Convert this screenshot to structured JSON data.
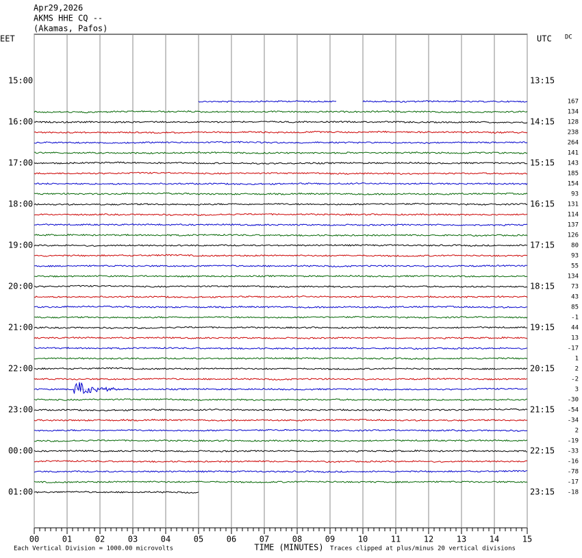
{
  "chart_data": {
    "type": "helicorder",
    "title_lines": [
      "Apr29,2026",
      "AKMS HHE CQ --",
      "(Akamas, Pafos)"
    ],
    "left_axis_label": "EET",
    "right_axis_label": "UTC",
    "dc_label": "DC",
    "x_label": "TIME (MINUTES)",
    "scale_note": "Each Vertical Division = 1000.00 microvolts",
    "clip_note": "Traces clipped at plus/minus 20 vertical divisions",
    "xlim": [
      0,
      15
    ],
    "xticks": [
      {
        "value": 0,
        "label": "00"
      },
      {
        "value": 1,
        "label": "01"
      },
      {
        "value": 2,
        "label": "02"
      },
      {
        "value": 3,
        "label": "03"
      },
      {
        "value": 4,
        "label": "04"
      },
      {
        "value": 5,
        "label": "05"
      },
      {
        "value": 6,
        "label": "06"
      },
      {
        "value": 7,
        "label": "07"
      },
      {
        "value": 8,
        "label": "08"
      },
      {
        "value": 9,
        "label": "09"
      },
      10,
      11,
      12,
      13,
      14,
      15
    ],
    "grid": true,
    "left_time_labels": [
      "15:00",
      "16:00",
      "17:00",
      "18:00",
      "19:00",
      "20:00",
      "21:00",
      "22:00",
      "23:00",
      "00:00",
      "01:00"
    ],
    "right_time_labels": [
      "13:15",
      "14:15",
      "15:15",
      "16:15",
      "17:15",
      "18:15",
      "19:15",
      "20:15",
      "21:15",
      "22:15",
      "23:15"
    ],
    "traces": [
      {
        "dc": 167,
        "color": "#0000cc",
        "segments": [
          [
            5,
            9.2
          ],
          [
            10,
            15
          ]
        ]
      },
      {
        "dc": 134,
        "color": "#006400",
        "segments": [
          [
            0,
            15
          ]
        ]
      },
      {
        "dc": 128,
        "color": "#000000",
        "segments": [
          [
            0,
            15
          ]
        ]
      },
      {
        "dc": 238,
        "color": "#cc0000",
        "segments": [
          [
            0,
            15
          ]
        ]
      },
      {
        "dc": 264,
        "color": "#0000cc",
        "segments": [
          [
            0,
            15
          ]
        ]
      },
      {
        "dc": 141,
        "color": "#006400",
        "segments": [
          [
            0,
            15
          ]
        ]
      },
      {
        "dc": 143,
        "color": "#000000",
        "segments": [
          [
            0,
            15
          ]
        ]
      },
      {
        "dc": 185,
        "color": "#cc0000",
        "segments": [
          [
            0,
            15
          ]
        ]
      },
      {
        "dc": 154,
        "color": "#0000cc",
        "segments": [
          [
            0,
            15
          ]
        ]
      },
      {
        "dc": 93,
        "color": "#006400",
        "segments": [
          [
            0,
            15
          ]
        ]
      },
      {
        "dc": 131,
        "color": "#000000",
        "segments": [
          [
            0,
            15
          ]
        ]
      },
      {
        "dc": 114,
        "color": "#cc0000",
        "segments": [
          [
            0,
            15
          ]
        ]
      },
      {
        "dc": 137,
        "color": "#0000cc",
        "segments": [
          [
            0,
            15
          ]
        ]
      },
      {
        "dc": 126,
        "color": "#006400",
        "segments": [
          [
            0,
            15
          ]
        ]
      },
      {
        "dc": 80,
        "color": "#000000",
        "segments": [
          [
            0,
            15
          ]
        ]
      },
      {
        "dc": 93,
        "color": "#cc0000",
        "segments": [
          [
            0,
            15
          ]
        ]
      },
      {
        "dc": 55,
        "color": "#0000cc",
        "segments": [
          [
            0,
            15
          ]
        ]
      },
      {
        "dc": 134,
        "color": "#006400",
        "segments": [
          [
            0,
            15
          ]
        ]
      },
      {
        "dc": 73,
        "color": "#000000",
        "segments": [
          [
            0,
            15
          ]
        ]
      },
      {
        "dc": 43,
        "color": "#cc0000",
        "segments": [
          [
            0,
            15
          ]
        ]
      },
      {
        "dc": 85,
        "color": "#0000cc",
        "segments": [
          [
            0,
            15
          ]
        ]
      },
      {
        "dc": -1,
        "color": "#006400",
        "segments": [
          [
            0,
            15
          ]
        ]
      },
      {
        "dc": 44,
        "color": "#000000",
        "segments": [
          [
            0,
            15
          ]
        ]
      },
      {
        "dc": 13,
        "color": "#cc0000",
        "segments": [
          [
            0,
            15
          ]
        ]
      },
      {
        "dc": -17,
        "color": "#0000cc",
        "segments": [
          [
            0,
            15
          ]
        ]
      },
      {
        "dc": 1,
        "color": "#006400",
        "segments": [
          [
            0,
            15
          ]
        ]
      },
      {
        "dc": 2,
        "color": "#000000",
        "segments": [
          [
            0,
            15
          ]
        ]
      },
      {
        "dc": -2,
        "color": "#cc0000",
        "segments": [
          [
            0,
            15
          ]
        ]
      },
      {
        "dc": 3,
        "color": "#0000cc",
        "segments": [
          [
            0,
            15
          ]
        ],
        "event": [
          1.2,
          2.9
        ]
      },
      {
        "dc": -30,
        "color": "#006400",
        "segments": [
          [
            0,
            15
          ]
        ]
      },
      {
        "dc": -54,
        "color": "#000000",
        "segments": [
          [
            0,
            15
          ]
        ]
      },
      {
        "dc": -34,
        "color": "#cc0000",
        "segments": [
          [
            0,
            15
          ]
        ]
      },
      {
        "dc": 2,
        "color": "#0000cc",
        "segments": [
          [
            0,
            15
          ]
        ]
      },
      {
        "dc": -19,
        "color": "#006400",
        "segments": [
          [
            0,
            15
          ]
        ]
      },
      {
        "dc": -33,
        "color": "#000000",
        "segments": [
          [
            0,
            15
          ]
        ]
      },
      {
        "dc": -16,
        "color": "#cc0000",
        "segments": [
          [
            0,
            15
          ]
        ]
      },
      {
        "dc": -78,
        "color": "#0000cc",
        "segments": [
          [
            0,
            15
          ]
        ]
      },
      {
        "dc": -17,
        "color": "#006400",
        "segments": [
          [
            0,
            15
          ]
        ]
      },
      {
        "dc": -18,
        "color": "#000000",
        "segments": [
          [
            0,
            5
          ]
        ]
      }
    ]
  }
}
